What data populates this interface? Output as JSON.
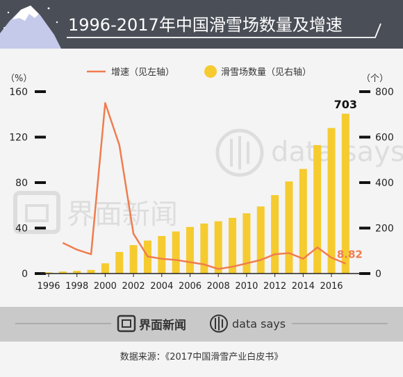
{
  "header": {
    "title": "1996-2017年中国滑雪场数量及增速",
    "bg_color": "#4a4e57",
    "title_color": "#ffffff"
  },
  "chart_data": {
    "type": "bar+line",
    "title": "1996-2017年中国滑雪场数量及增速",
    "left_axis": {
      "unit": "（%）",
      "ylim": [
        0,
        160
      ],
      "ticks": [
        "0",
        "40",
        "80",
        "120",
        "160"
      ]
    },
    "right_axis": {
      "unit": "（个）",
      "ylim": [
        0,
        800
      ],
      "ticks": [
        "0",
        "200",
        "400",
        "600",
        "800"
      ]
    },
    "x_tick_labels": [
      "1996",
      "1998",
      "2000",
      "2002",
      "2004",
      "2006",
      "2008",
      "2010",
      "2012",
      "2014",
      "2016"
    ],
    "years": [
      1996,
      1997,
      1998,
      1999,
      2000,
      2001,
      2002,
      2003,
      2004,
      2005,
      2006,
      2007,
      2008,
      2009,
      2010,
      2011,
      2012,
      2013,
      2014,
      2015,
      2016,
      2017
    ],
    "series": [
      {
        "name": "滑雪场数量（见右轴）",
        "type": "bar",
        "axis": "right",
        "color": "#f5cb2f",
        "values": [
          5,
          9,
          12,
          16,
          45,
          95,
          125,
          145,
          165,
          185,
          205,
          220,
          230,
          245,
          265,
          295,
          345,
          405,
          460,
          565,
          640,
          703
        ]
      },
      {
        "name": "增速（见左轴）",
        "type": "line",
        "axis": "left",
        "color": "#f07c4e",
        "values": [
          null,
          27,
          21,
          17,
          150,
          113,
          35,
          15,
          13,
          12,
          10,
          8,
          4,
          6,
          9,
          12,
          17,
          18,
          13,
          23,
          14,
          8.82
        ]
      }
    ],
    "annotations": {
      "bar_last_label": "703",
      "line_last_label": "8.82",
      "line_label_color": "#f07c4e"
    },
    "legend_placement": "top",
    "grid": false
  },
  "watermarks": {
    "jiemian": "界面新闻",
    "datasays": "data says"
  },
  "footer": {
    "logo_jiemian": "界面新闻",
    "logo_datasays": "data says",
    "source": "数据来源：《2017中国滑雪产业白皮书》"
  }
}
